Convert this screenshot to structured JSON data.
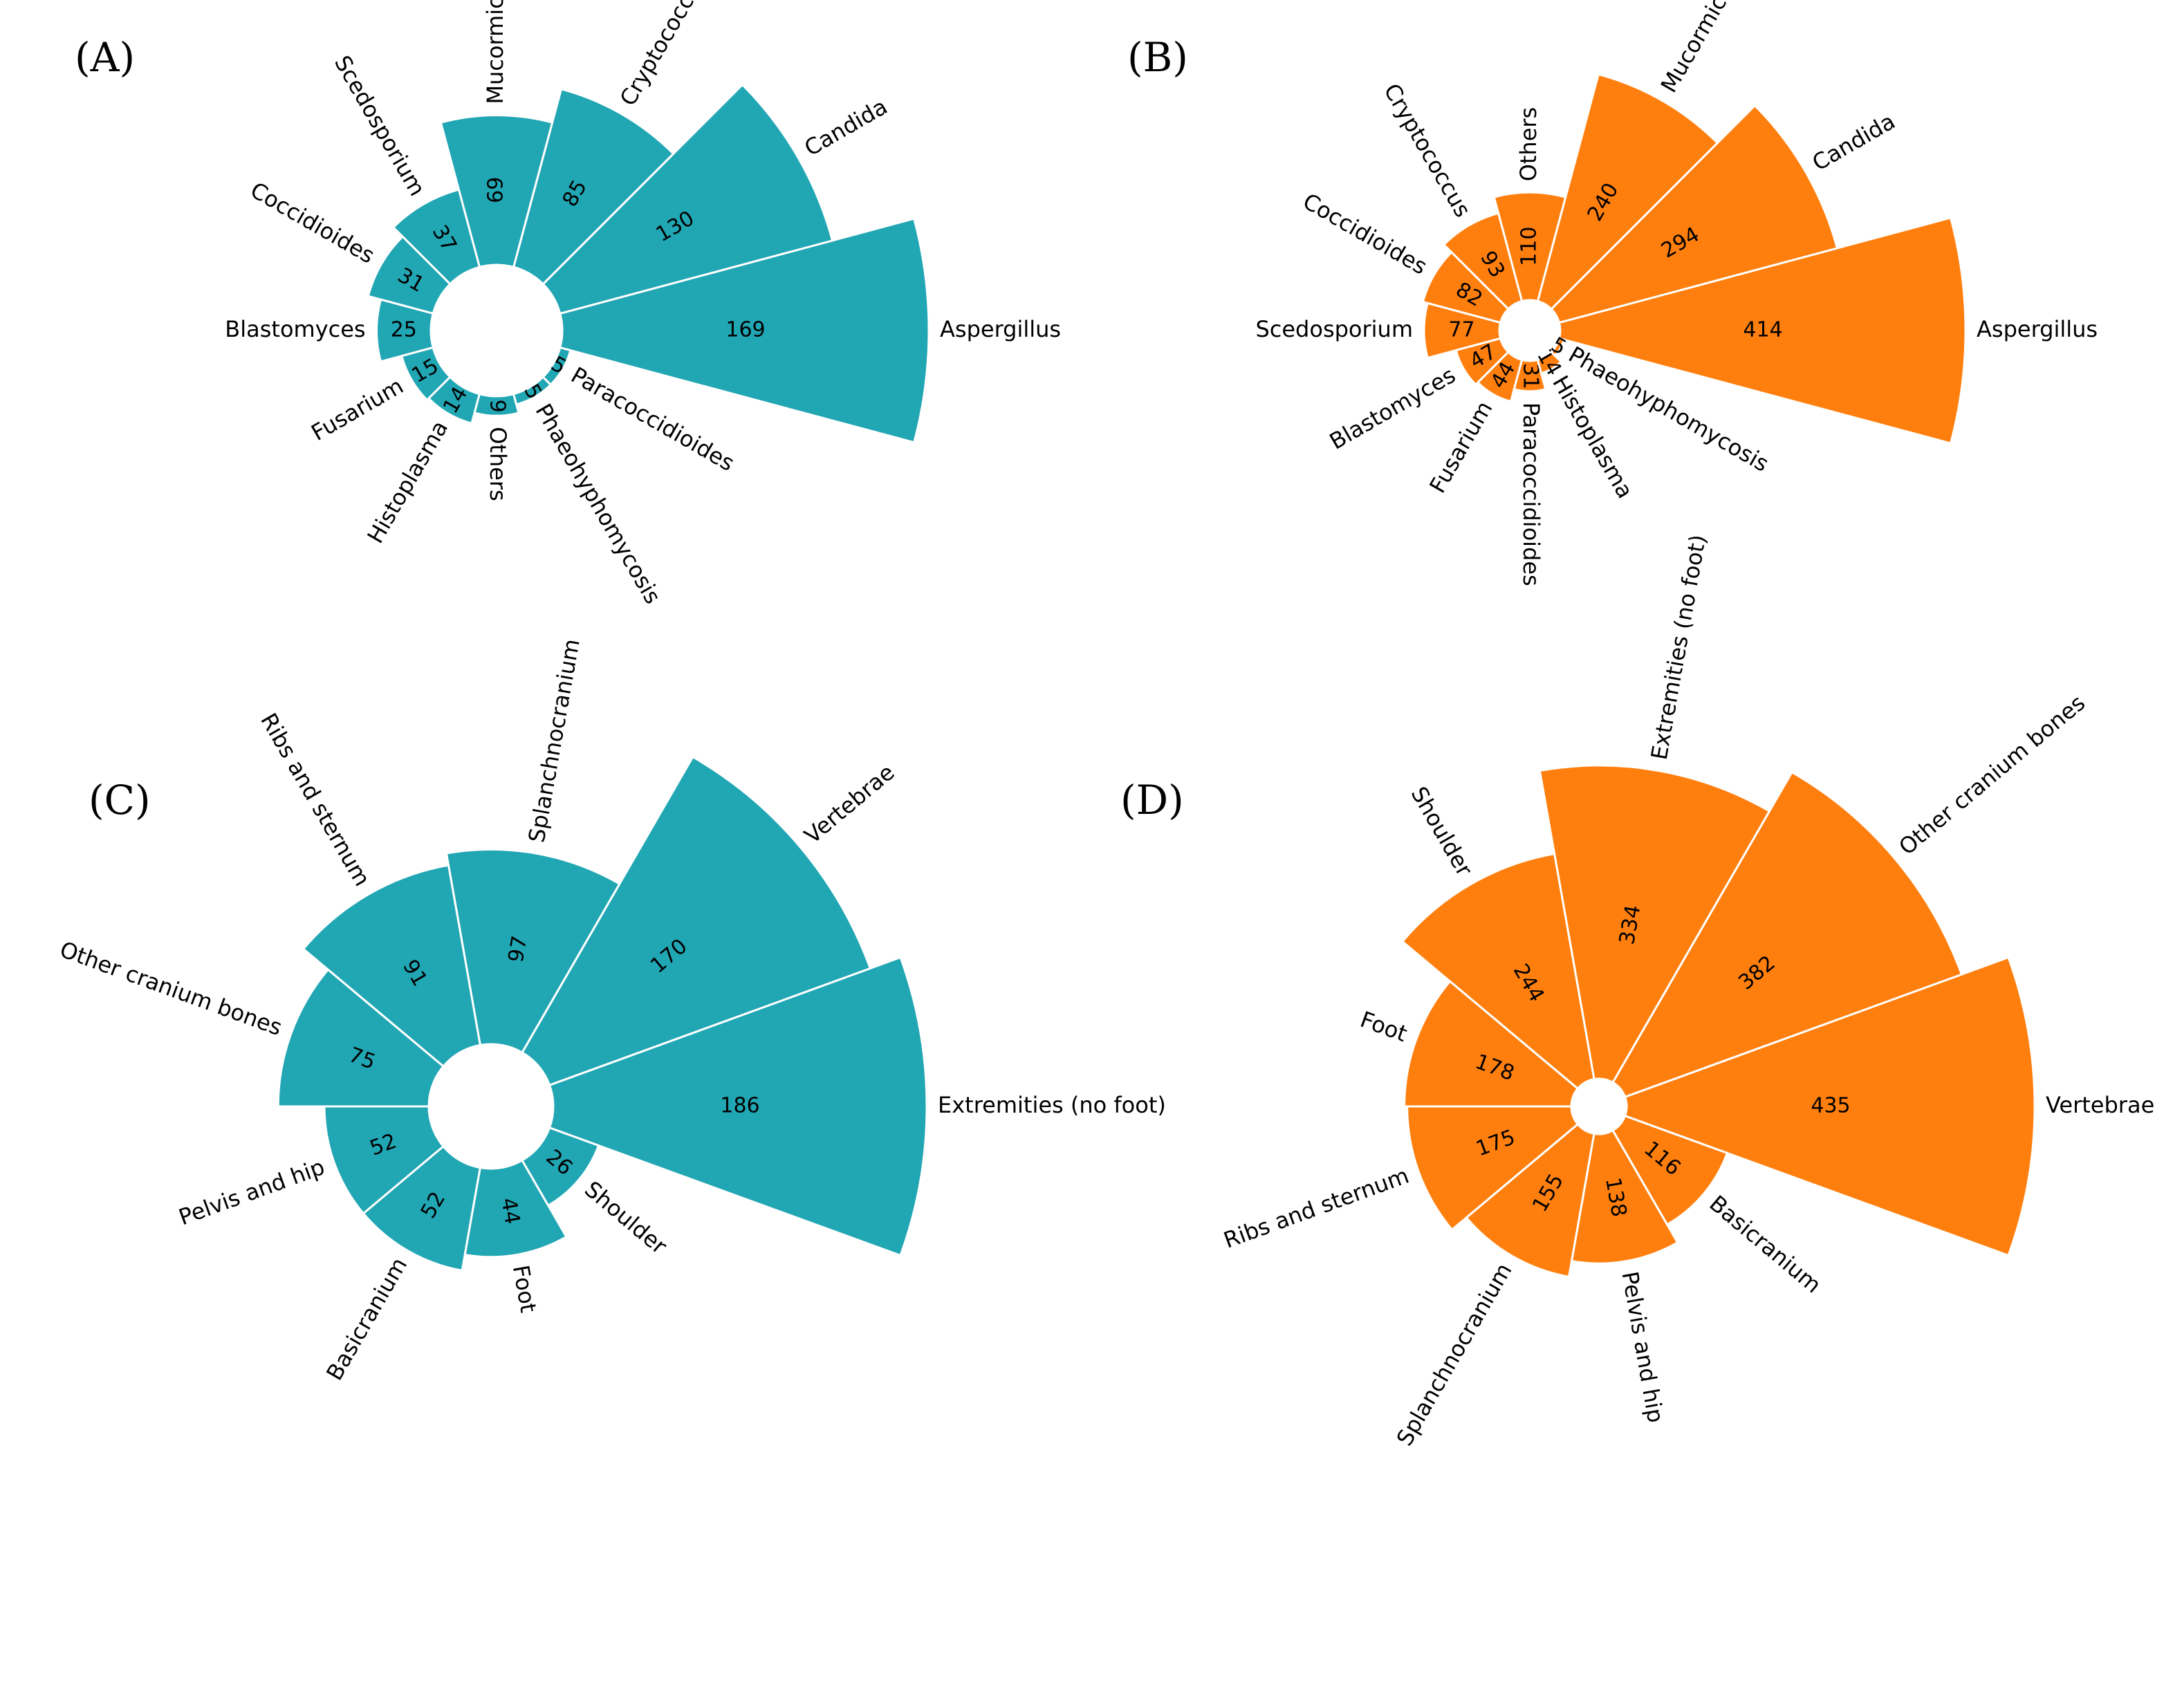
{
  "colors": {
    "teal": "#21a6b4",
    "orange": "#ff7f0e",
    "separator": "#ffffff",
    "background": "#ffffff"
  },
  "chart_data": [
    {
      "type": "bar",
      "polar": true,
      "panel_label": "(A)",
      "color": "#21a6b4",
      "categories": [
        "Aspergillus",
        "Candida",
        "Cryptococcus",
        "Mucormicosis",
        "Scedosporium",
        "Coccidioides",
        "Blastomyces",
        "Fusarium",
        "Histoplasma",
        "Others",
        "Phaeohyphomycosis",
        "Paracoccidioides"
      ],
      "values": [
        169,
        130,
        85,
        69,
        37,
        31,
        25,
        15,
        14,
        9,
        5,
        5
      ],
      "value_labels": [
        "169",
        "130",
        "85",
        "69",
        "37",
        "31",
        "25",
        "15",
        "14",
        "9",
        "5",
        "5"
      ]
    },
    {
      "type": "bar",
      "polar": true,
      "panel_label": "(B)",
      "color": "#ff7f0e",
      "categories": [
        "Aspergillus",
        "Candida",
        "Mucormicosis",
        "Others",
        "Cryptococcus",
        "Coccidioides",
        "Scedosporium",
        "Blastomyces",
        "Fusarium",
        "Paracoccidioides",
        "Histoplasma",
        "Phaeohyphomycosis"
      ],
      "values": [
        414,
        294,
        240,
        110,
        93,
        82,
        77,
        47,
        44,
        31,
        14,
        5
      ],
      "value_labels": [
        "414",
        "294",
        "240",
        "110",
        "93",
        "82",
        "77",
        "47",
        "44",
        "31",
        "14",
        "5"
      ]
    },
    {
      "type": "bar",
      "polar": true,
      "panel_label": "(C)",
      "color": "#21a6b4",
      "categories": [
        "Extremities (no foot)",
        "Vertebrae",
        "Splanchnocranium",
        "Ribs and sternum",
        "Other cranium bones",
        "Pelvis and hip",
        "Basicranium",
        "Foot",
        "Shoulder"
      ],
      "values": [
        186,
        170,
        97,
        91,
        75,
        52,
        52,
        44,
        26
      ],
      "value_labels": [
        "186",
        "170",
        "97",
        "91",
        "75",
        "52",
        "52",
        "44",
        "26"
      ]
    },
    {
      "type": "bar",
      "polar": true,
      "panel_label": "(D)",
      "color": "#ff7f0e",
      "categories": [
        "Vertebrae",
        "Other cranium bones",
        "Extremities (no foot)",
        "Shoulder",
        "Foot",
        "Ribs and sternum",
        "Splanchnocranium",
        "Pelvis and hip",
        "Basicranium"
      ],
      "values": [
        435,
        382,
        334,
        244,
        178,
        175,
        155,
        138,
        116
      ],
      "value_labels": [
        "435",
        "382",
        "334",
        "244",
        "178",
        "175",
        "155",
        "138",
        "116"
      ]
    }
  ]
}
